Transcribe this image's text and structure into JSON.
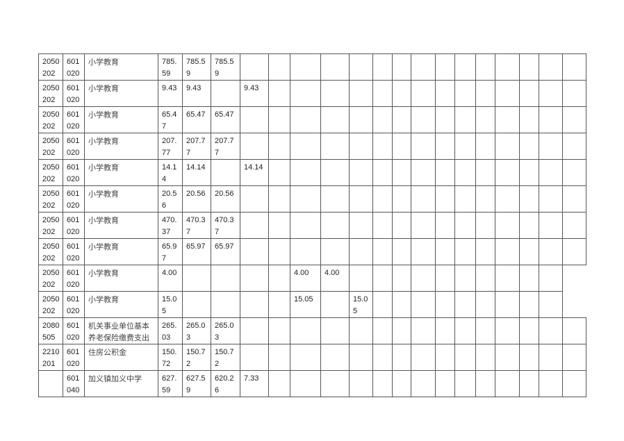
{
  "table": {
    "rows": [
      [
        "2050202",
        "601020",
        "小学教育",
        "785.59",
        "785.59",
        "785.59",
        "",
        "",
        "",
        "",
        "",
        "",
        "",
        "",
        "",
        "",
        "",
        "",
        "",
        "",
        ""
      ],
      [
        "2050202",
        "601020",
        "小学教育",
        "9.43",
        "9.43",
        "",
        "9.43",
        "",
        "",
        "",
        "",
        "",
        "",
        "",
        "",
        "",
        "",
        "",
        "",
        "",
        ""
      ],
      [
        "2050202",
        "601020",
        "小学教育",
        "65.47",
        "65.47",
        "65.47",
        "",
        "",
        "",
        "",
        "",
        "",
        "",
        "",
        "",
        "",
        "",
        "",
        "",
        "",
        ""
      ],
      [
        "2050202",
        "601020",
        "小学教育",
        "207.77",
        "207.77",
        "207.77",
        "",
        "",
        "",
        "",
        "",
        "",
        "",
        "",
        "",
        "",
        "",
        "",
        "",
        "",
        ""
      ],
      [
        "2050202",
        "601020",
        "小学教育",
        "14.14",
        "14.14",
        "",
        "14.14",
        "",
        "",
        "",
        "",
        "",
        "",
        "",
        "",
        "",
        "",
        "",
        "",
        "",
        ""
      ],
      [
        "2050202",
        "601020",
        "小学教育",
        "20.56",
        "20.56",
        "20.56",
        "",
        "",
        "",
        "",
        "",
        "",
        "",
        "",
        "",
        "",
        "",
        "",
        "",
        "",
        ""
      ],
      [
        "2050202",
        "601020",
        "小学教育",
        "470.37",
        "470.37",
        "470.37",
        "",
        "",
        "",
        "",
        "",
        "",
        "",
        "",
        "",
        "",
        "",
        "",
        "",
        "",
        ""
      ],
      [
        "2050202",
        "601020",
        "小学教育",
        "65.97",
        "65.97",
        "65.97",
        "",
        "",
        "",
        "",
        "",
        "",
        "",
        "",
        "",
        "",
        "",
        "",
        "",
        "",
        ""
      ],
      [
        "2050202",
        "601020",
        "小学教育",
        "4.00",
        "",
        "",
        "",
        "",
        "4.00",
        "4.00",
        "",
        "",
        "",
        "",
        "",
        "",
        "",
        "",
        "",
        ""
      ],
      [
        "2050202",
        "601020",
        "小学教育",
        "15.05",
        "",
        "",
        "",
        "",
        "15.05",
        "",
        "15.05",
        "",
        "",
        "",
        "",
        "",
        "",
        "",
        "",
        ""
      ],
      [
        "2080505",
        "601020",
        "机关事业单位基本养老保险缴费支出",
        "265.03",
        "265.03",
        "265.03",
        "",
        "",
        "",
        "",
        "",
        "",
        "",
        "",
        "",
        "",
        "",
        "",
        "",
        "",
        ""
      ],
      [
        "2210201",
        "601020",
        "住房公积金",
        "150.72",
        "150.72",
        "150.72",
        "",
        "",
        "",
        "",
        "",
        "",
        "",
        "",
        "",
        "",
        "",
        "",
        "",
        "",
        ""
      ],
      [
        "",
        "601040",
        "加义镇加义中学",
        "627.59",
        "627.59",
        "620.26",
        "7.33",
        "",
        "",
        "",
        "",
        "",
        "",
        "",
        "",
        "",
        "",
        "",
        "",
        "",
        ""
      ]
    ]
  }
}
